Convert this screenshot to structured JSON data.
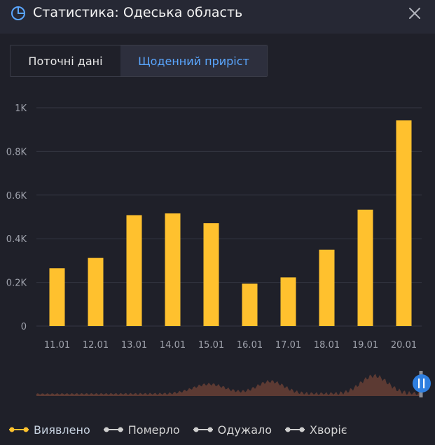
{
  "header": {
    "title": "Статистика: Одеська область",
    "logo_icon": "pie-chart-icon",
    "close_icon": "close-icon"
  },
  "tabs": [
    {
      "label": "Поточні дані",
      "active": false
    },
    {
      "label": "Щоденний приріст",
      "active": true
    }
  ],
  "colors": {
    "accent": "#ffc12e",
    "tab_active": "#5aa6ff",
    "navigator_fill": "#5c3a33",
    "handle": "#2f7fe0"
  },
  "chart_data": {
    "type": "bar",
    "categories": [
      "11.01",
      "12.01",
      "13.01",
      "14.01",
      "15.01",
      "16.01",
      "17.01",
      "18.01",
      "19.01",
      "20.01"
    ],
    "series": [
      {
        "name": "Виявлено",
        "values": [
          265,
          312,
          508,
          516,
          471,
          194,
          223,
          350,
          533,
          942
        ]
      }
    ],
    "ylim": [
      0,
      1000
    ],
    "yticks": [
      0,
      200,
      400,
      600,
      800,
      1000
    ],
    "ytick_labels": [
      "0",
      "0.2K",
      "0.4K",
      "0.6K",
      "0.8K",
      "1K"
    ],
    "grid": true,
    "legend_position": "bottom-left"
  },
  "legend": [
    {
      "label": "Виявлено",
      "active": true
    },
    {
      "label": "Померло",
      "active": false
    },
    {
      "label": "Одужало",
      "active": false
    },
    {
      "label": "Хворіє",
      "active": false
    }
  ]
}
